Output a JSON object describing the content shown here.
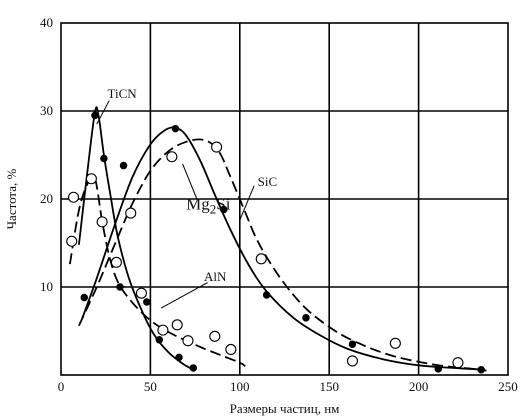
{
  "chart_data": {
    "type": "scatter",
    "title": "",
    "xlabel": "Размеры частиц, нм",
    "ylabel": "Частота, %",
    "xlim": [
      0,
      250
    ],
    "ylim": [
      0,
      40
    ],
    "x_ticks": [
      0,
      50,
      100,
      150,
      200,
      250
    ],
    "y_ticks": [
      10,
      20,
      30,
      40
    ],
    "x_tick_labels": [
      "0",
      "50",
      "100",
      "150",
      "200",
      "250"
    ],
    "y_tick_labels": [
      "10",
      "20",
      "30",
      "40"
    ],
    "grid": true,
    "legend": "none",
    "annotations": [
      {
        "text": "TiCN",
        "x": 26,
        "y": 31.5,
        "size": "normal"
      },
      {
        "text": "SiC",
        "x": 110,
        "y": 21.5,
        "size": "normal"
      },
      {
        "text": "Mg2Si",
        "x": 70,
        "y": 18.8,
        "size": "large"
      },
      {
        "text": "AlN",
        "x": 80,
        "y": 10.7,
        "size": "normal"
      }
    ],
    "series": [
      {
        "marker": "open-circle",
        "line": "dashed",
        "points": [
          [
            6,
            15.2
          ],
          [
            7,
            20.2
          ],
          [
            17,
            22.3
          ],
          [
            23,
            17.4
          ],
          [
            31,
            12.8
          ],
          [
            39,
            18.4
          ],
          [
            45,
            9.3
          ],
          [
            57,
            5.1
          ],
          [
            65,
            5.7
          ],
          [
            71,
            3.9
          ],
          [
            86,
            4.4
          ],
          [
            95,
            2.9
          ],
          [
            112,
            13.2
          ],
          [
            163,
            1.6
          ],
          [
            187,
            3.6
          ],
          [
            222,
            1.4
          ]
        ],
        "curve": [
          [
            5,
            12.6
          ],
          [
            10,
            18.7
          ],
          [
            15,
            21.8
          ],
          [
            19,
            22.3
          ],
          [
            23,
            17.5
          ],
          [
            27,
            13.5
          ],
          [
            32,
            10.5
          ],
          [
            40,
            8.2
          ],
          [
            50,
            6.2
          ],
          [
            60,
            4.9
          ],
          [
            70,
            3.9
          ],
          [
            80,
            3.0
          ],
          [
            90,
            2.2
          ],
          [
            100,
            1.4
          ],
          [
            103,
            1.0
          ]
        ]
      },
      {
        "marker": "filled-circle",
        "line": "solid",
        "points": [
          [
            13,
            8.8
          ],
          [
            19,
            29.5
          ],
          [
            24,
            24.6
          ],
          [
            33,
            10
          ],
          [
            48,
            8.3
          ],
          [
            55,
            4
          ],
          [
            66,
            2
          ],
          [
            74,
            0.8
          ]
        ],
        "curve": [
          [
            10,
            14.8
          ],
          [
            15,
            23.5
          ],
          [
            19,
            29.9
          ],
          [
            21,
            29.5
          ],
          [
            24,
            25
          ],
          [
            28,
            20
          ],
          [
            32,
            15.5
          ],
          [
            38,
            11
          ],
          [
            45,
            7.4
          ],
          [
            52,
            4.6
          ],
          [
            60,
            2.6
          ],
          [
            68,
            1.3
          ],
          [
            74,
            0.6
          ]
        ]
      },
      {
        "marker": "filled-circle",
        "line": "solid",
        "points": [
          [
            35,
            23.8
          ],
          [
            64,
            28
          ],
          [
            91,
            18.8
          ],
          [
            115,
            9.1
          ],
          [
            137,
            6.5
          ],
          [
            163,
            3.5
          ],
          [
            211,
            0.7
          ],
          [
            235,
            0.6
          ]
        ],
        "curve": [
          [
            12,
            6.5
          ],
          [
            20,
            11
          ],
          [
            30,
            17
          ],
          [
            40,
            22.5
          ],
          [
            50,
            26.2
          ],
          [
            58,
            27.8
          ],
          [
            64,
            28.1
          ],
          [
            70,
            27.2
          ],
          [
            78,
            24.3
          ],
          [
            86,
            20.5
          ],
          [
            95,
            16.4
          ],
          [
            105,
            12.5
          ],
          [
            115,
            9.5
          ],
          [
            130,
            6.5
          ],
          [
            145,
            4.5
          ],
          [
            160,
            3.0
          ],
          [
            180,
            1.8
          ],
          [
            200,
            1.1
          ],
          [
            220,
            0.8
          ],
          [
            237,
            0.6
          ]
        ]
      },
      {
        "marker": "open-circle",
        "line": "dashed",
        "points": [
          [
            62,
            24.8
          ],
          [
            87,
            25.9
          ]
        ],
        "curve": [
          [
            10,
            5.6
          ],
          [
            20,
            10
          ],
          [
            30,
            14.8
          ],
          [
            40,
            19.5
          ],
          [
            50,
            23.2
          ],
          [
            60,
            25.4
          ],
          [
            70,
            26.5
          ],
          [
            80,
            26.7
          ],
          [
            88,
            25.5
          ],
          [
            95,
            22.4
          ],
          [
            103,
            18.5
          ],
          [
            110,
            15.2
          ],
          [
            120,
            11.8
          ],
          [
            130,
            9.1
          ],
          [
            140,
            7.0
          ],
          [
            155,
            4.8
          ],
          [
            170,
            3.3
          ],
          [
            185,
            2.2
          ],
          [
            200,
            1.5
          ],
          [
            215,
            1.0
          ],
          [
            230,
            0.7
          ],
          [
            238,
            0.5
          ]
        ]
      }
    ]
  }
}
